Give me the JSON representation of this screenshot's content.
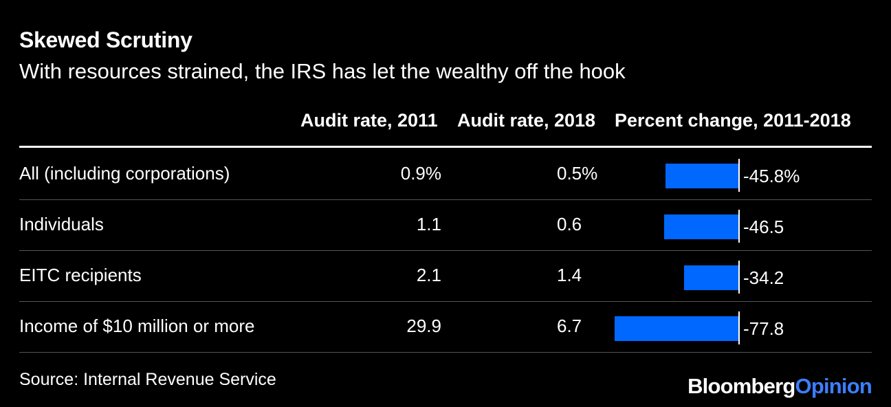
{
  "title": "Skewed Scrutiny",
  "subtitle": "With resources strained, the IRS has let the wealthy off the hook",
  "columns": [
    "Audit rate, 2011",
    "Audit rate, 2018",
    "Percent change, 2011-2018"
  ],
  "source": "Source: Internal Revenue Service",
  "brand": {
    "bloomberg": "Bloomberg",
    "opinion": "Opinion"
  },
  "colors": {
    "bar": "#0068ff",
    "background": "#000000",
    "text": "#ffffff"
  },
  "chart_data": {
    "type": "table",
    "title": "Skewed Scrutiny",
    "subtitle": "With resources strained, the IRS has let the wealthy off the hook",
    "columns": [
      "Audit rate, 2011",
      "Audit rate, 2018",
      "Percent change, 2011-2018"
    ],
    "rows": [
      {
        "label": "All (including corporations)",
        "rate_2011": "0.9%",
        "rate_2018": "0.5%",
        "change_label": "-45.8%",
        "change": -45.8
      },
      {
        "label": "Individuals",
        "rate_2011": "1.1",
        "rate_2018": "0.6",
        "change_label": "-46.5",
        "change": -46.5
      },
      {
        "label": "EITC recipients",
        "rate_2011": "2.1",
        "rate_2018": "1.4",
        "change_label": "-34.2",
        "change": -34.2
      },
      {
        "label": "Income of $10 million or more",
        "rate_2011": "29.9",
        "rate_2018": "6.7",
        "change_label": "-77.8",
        "change": -77.8
      }
    ],
    "bar_series": "Percent change, 2011-2018"
  }
}
